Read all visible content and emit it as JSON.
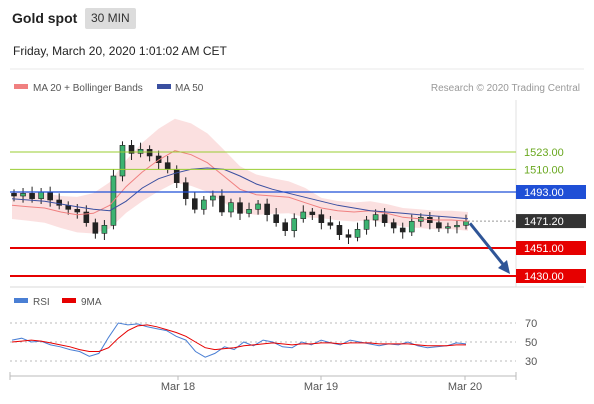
{
  "header": {
    "title": "Gold spot",
    "timeframe": "30 MIN"
  },
  "subheader": {
    "datetime": "Friday, March 20, 2020 1:01:02 AM CET"
  },
  "legend": {
    "ma20": "MA 20 + Bollinger Bands",
    "ma50": "MA 50",
    "credit": "Research © 2020 Trading Central"
  },
  "rsi_legend": {
    "rsi": "RSI",
    "ma9": "9MA"
  },
  "colors": {
    "bollinger": "#fadada",
    "ma20": "#f08080",
    "ma50": "#3a4fa0",
    "green": "#9acd32",
    "blue": "#1f4fd6",
    "red": "#e60000",
    "arrow": "#2f5597",
    "last": "#333333"
  },
  "chart_data": [
    {
      "type": "line",
      "title": "Gold spot",
      "x_ticks": [
        "Mar 18",
        "Mar 19",
        "Mar 20"
      ],
      "series": [
        {
          "name": "MA 20 + Bollinger Bands",
          "values": [
            1483,
            1482,
            1481,
            1478,
            1476,
            1477,
            1483,
            1497,
            1508,
            1517,
            1524,
            1521,
            1515,
            1505,
            1495,
            1491,
            1490,
            1489,
            1485,
            1481,
            1479,
            1478,
            1479,
            1477,
            1474,
            1473,
            1472,
            1472,
            1471
          ]
        },
        {
          "name": "MA 50",
          "values": [
            1488,
            1487,
            1486,
            1484,
            1482,
            1480,
            1479,
            1486,
            1496,
            1503,
            1507,
            1510,
            1511,
            1510,
            1505,
            1499,
            1495,
            1492,
            1489,
            1486,
            1483,
            1481,
            1479,
            1478,
            1477,
            1476,
            1475,
            1474,
            1473
          ]
        }
      ],
      "levels": [
        {
          "value": 1523.0,
          "label": "1523.00",
          "style": "resistance"
        },
        {
          "value": 1510.0,
          "label": "1510.00",
          "style": "resistance"
        },
        {
          "value": 1493.0,
          "label": "1493.00",
          "style": "pivot"
        },
        {
          "value": 1471.2,
          "label": "1471.20",
          "style": "last"
        },
        {
          "value": 1451.0,
          "label": "1451.00",
          "style": "support"
        },
        {
          "value": 1430.0,
          "label": "1430.00",
          "style": "support"
        }
      ],
      "close": [
        1490,
        1492,
        1488,
        1493,
        1487,
        1483,
        1480,
        1478,
        1470,
        1462,
        1468,
        1505,
        1528,
        1522,
        1525,
        1520,
        1515,
        1510,
        1500,
        1488,
        1480,
        1487,
        1490,
        1478,
        1485,
        1477,
        1480,
        1484,
        1476,
        1470,
        1464,
        1473,
        1478,
        1476,
        1470,
        1468,
        1461,
        1459,
        1465,
        1472,
        1476,
        1470,
        1466,
        1463,
        1471,
        1474,
        1470,
        1466,
        1467,
        1468,
        1471
      ],
      "arrow": {
        "from": 1471,
        "to": 1430
      }
    },
    {
      "type": "line",
      "title": "RSI",
      "y_ticks": [
        70,
        50,
        30
      ],
      "series": [
        {
          "name": "RSI",
          "values": [
            52,
            54,
            50,
            51,
            47,
            45,
            42,
            40,
            35,
            38,
            55,
            70,
            68,
            69,
            66,
            64,
            62,
            56,
            52,
            40,
            34,
            38,
            45,
            42,
            50,
            46,
            52,
            50,
            45,
            44,
            50,
            47,
            52,
            49,
            47,
            52,
            50,
            48,
            46,
            48,
            47,
            50,
            46,
            44,
            45,
            46,
            49,
            48
          ]
        },
        {
          "name": "9MA",
          "values": [
            50,
            51,
            52,
            51,
            49,
            47,
            45,
            42,
            40,
            40,
            44,
            54,
            62,
            67,
            68,
            66,
            63,
            60,
            56,
            50,
            44,
            42,
            43,
            44,
            46,
            47,
            48,
            49,
            48,
            47,
            48,
            48,
            49,
            49,
            48,
            49,
            49,
            49,
            48,
            48,
            48,
            48,
            47,
            46,
            46,
            46,
            47,
            47
          ]
        }
      ]
    }
  ]
}
